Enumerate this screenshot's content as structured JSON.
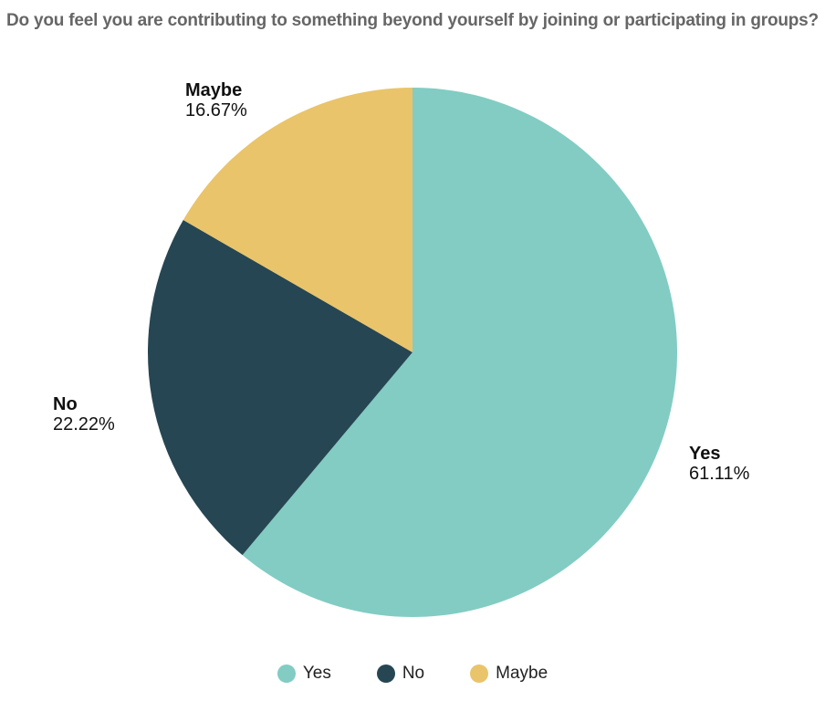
{
  "chart_data": {
    "type": "pie",
    "title": "Do you feel you are contributing to something beyond yourself by joining or participating in groups?",
    "slices": [
      {
        "name": "Yes",
        "value": 61.11,
        "label": "61.11%",
        "color": "#82CCC3"
      },
      {
        "name": "No",
        "value": 22.22,
        "label": "22.22%",
        "color": "#264653"
      },
      {
        "name": "Maybe",
        "value": 16.67,
        "label": "16.67%",
        "color": "#E9C46A"
      }
    ],
    "legend_placement": "bottom"
  },
  "legend": {
    "items": [
      {
        "label": "Yes",
        "color": "#82CCC3"
      },
      {
        "label": "No",
        "color": "#264653"
      },
      {
        "label": "Maybe",
        "color": "#E9C46A"
      }
    ]
  }
}
